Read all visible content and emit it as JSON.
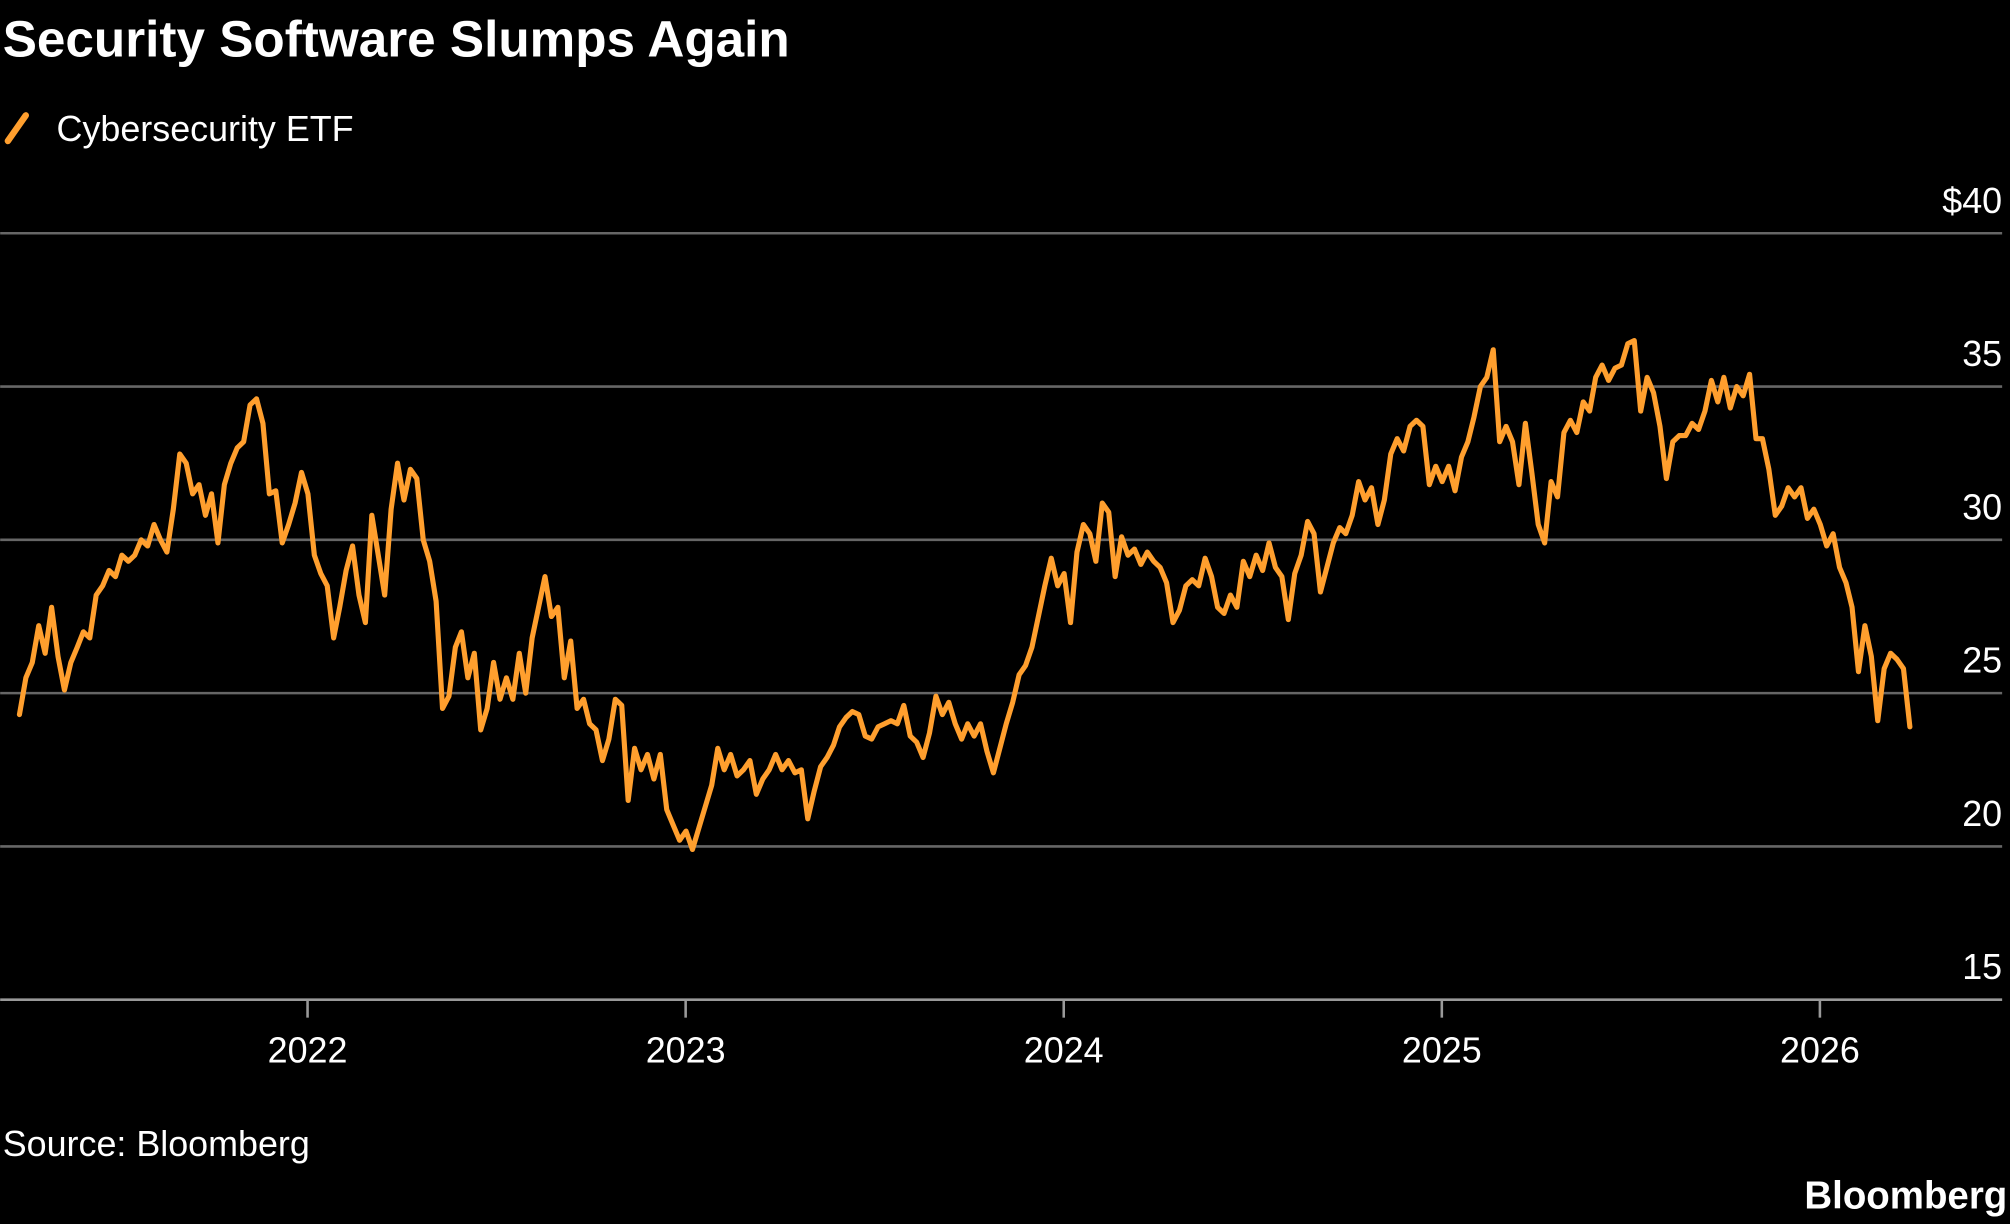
{
  "chart_data": {
    "type": "line",
    "title": "Security Software Slumps Again",
    "source": "Source: Bloomberg",
    "logo": "Bloomberg",
    "x": [
      2021.238,
      2021.255,
      2021.272,
      2021.289,
      2021.306,
      2021.323,
      2021.34,
      2021.357,
      2021.374,
      2021.391,
      2021.407,
      2021.424,
      2021.441,
      2021.458,
      2021.475,
      2021.492,
      2021.509,
      2021.526,
      2021.543,
      2021.56,
      2021.577,
      2021.594,
      2021.611,
      2021.628,
      2021.645,
      2021.662,
      2021.679,
      2021.696,
      2021.713,
      2021.73,
      2021.746,
      2021.763,
      2021.78,
      2021.797,
      2021.814,
      2021.831,
      2021.848,
      2021.865,
      2021.882,
      2021.899,
      2021.916,
      2021.933,
      2021.95,
      2021.967,
      2021.984,
      2022.001,
      2022.018,
      2022.035,
      2022.052,
      2022.069,
      2022.085,
      2022.102,
      2022.119,
      2022.136,
      2022.153,
      2022.17,
      2022.187,
      2022.204,
      2022.221,
      2022.238,
      2022.255,
      2022.272,
      2022.289,
      2022.306,
      2022.323,
      2022.34,
      2022.357,
      2022.374,
      2022.391,
      2022.407,
      2022.424,
      2022.441,
      2022.458,
      2022.475,
      2022.492,
      2022.509,
      2022.526,
      2022.543,
      2022.56,
      2022.577,
      2022.594,
      2022.611,
      2022.628,
      2022.645,
      2022.662,
      2022.679,
      2022.696,
      2022.713,
      2022.73,
      2022.746,
      2022.763,
      2022.78,
      2022.797,
      2022.814,
      2022.831,
      2022.848,
      2022.865,
      2022.882,
      2022.899,
      2022.916,
      2022.933,
      2022.95,
      2022.967,
      2022.984,
      2023.001,
      2023.018,
      2023.035,
      2023.052,
      2023.069,
      2023.085,
      2023.102,
      2023.119,
      2023.136,
      2023.153,
      2023.17,
      2023.187,
      2023.204,
      2023.221,
      2023.238,
      2023.255,
      2023.272,
      2023.289,
      2023.306,
      2023.323,
      2023.34,
      2023.357,
      2023.374,
      2023.391,
      2023.407,
      2023.424,
      2023.441,
      2023.458,
      2023.475,
      2023.492,
      2023.509,
      2023.526,
      2023.543,
      2023.56,
      2023.577,
      2023.594,
      2023.611,
      2023.628,
      2023.645,
      2023.662,
      2023.679,
      2023.696,
      2023.713,
      2023.73,
      2023.746,
      2023.763,
      2023.78,
      2023.797,
      2023.814,
      2023.831,
      2023.848,
      2023.865,
      2023.882,
      2023.899,
      2023.916,
      2023.933,
      2023.95,
      2023.967,
      2023.984,
      2024.001,
      2024.018,
      2024.035,
      2024.052,
      2024.069,
      2024.085,
      2024.102,
      2024.119,
      2024.136,
      2024.153,
      2024.17,
      2024.187,
      2024.204,
      2024.221,
      2024.238,
      2024.255,
      2024.272,
      2024.289,
      2024.306,
      2024.323,
      2024.34,
      2024.357,
      2024.374,
      2024.391,
      2024.407,
      2024.424,
      2024.441,
      2024.458,
      2024.475,
      2024.492,
      2024.509,
      2024.526,
      2024.543,
      2024.56,
      2024.577,
      2024.594,
      2024.611,
      2024.628,
      2024.645,
      2024.662,
      2024.679,
      2024.696,
      2024.713,
      2024.73,
      2024.746,
      2024.763,
      2024.78,
      2024.797,
      2024.814,
      2024.831,
      2024.848,
      2024.865,
      2024.882,
      2024.899,
      2024.916,
      2024.933,
      2024.95,
      2024.967,
      2024.984,
      2025.001,
      2025.018,
      2025.035,
      2025.052,
      2025.069,
      2025.085,
      2025.102,
      2025.119,
      2025.136,
      2025.153,
      2025.17,
      2025.187,
      2025.204,
      2025.221,
      2025.238,
      2025.255,
      2025.272,
      2025.289,
      2025.306,
      2025.323,
      2025.34,
      2025.357,
      2025.374,
      2025.391,
      2025.407,
      2025.424,
      2025.441,
      2025.458,
      2025.475,
      2025.492,
      2025.509,
      2025.526,
      2025.543,
      2025.56,
      2025.577,
      2025.594,
      2025.611,
      2025.628,
      2025.645,
      2025.662,
      2025.679,
      2025.696,
      2025.713,
      2025.73,
      2025.746,
      2025.763,
      2025.78,
      2025.797,
      2025.814,
      2025.831,
      2025.848,
      2025.865,
      2025.882,
      2025.899,
      2025.916,
      2025.933,
      2025.95,
      2025.967,
      2025.984,
      2026.001,
      2026.018,
      2026.035,
      2026.052,
      2026.069,
      2026.085,
      2026.102,
      2026.119,
      2026.136,
      2026.153,
      2026.17,
      2026.187,
      2026.204,
      2026.221,
      2026.238
    ],
    "series": [
      {
        "name": "Cybersecurity ETF",
        "color": "#ff9f2e",
        "values": [
          24.3,
          25.5,
          26,
          27.2,
          26.3,
          27.8,
          26.2,
          25.1,
          26,
          26.5,
          27,
          26.8,
          28.2,
          28.5,
          29,
          28.8,
          29.5,
          29.3,
          29.5,
          30,
          29.8,
          30.5,
          30,
          29.6,
          31,
          32.8,
          32.5,
          31.5,
          31.8,
          30.8,
          31.5,
          29.9,
          31.8,
          32.5,
          33,
          33.2,
          34.4,
          34.6,
          33.8,
          31.5,
          31.6,
          29.9,
          30.5,
          31.2,
          32.2,
          31.5,
          29.5,
          28.9,
          28.5,
          26.8,
          27.8,
          29,
          29.8,
          28.2,
          27.3,
          30.8,
          29.5,
          28.2,
          31,
          32.5,
          31.3,
          32.3,
          32,
          30,
          29.3,
          28,
          24.5,
          24.9,
          26.5,
          27,
          25.5,
          26.3,
          23.8,
          24.5,
          26,
          24.8,
          25.5,
          24.8,
          26.3,
          25,
          26.8,
          27.8,
          28.8,
          27.5,
          27.8,
          25.5,
          26.7,
          24.5,
          24.8,
          24,
          23.8,
          22.8,
          23.5,
          24.8,
          24.6,
          21.5,
          23.2,
          22.5,
          23,
          22.2,
          23,
          21.2,
          20.7,
          20.2,
          20.5,
          19.9,
          20.6,
          21.3,
          22,
          23.2,
          22.5,
          23,
          22.3,
          22.5,
          22.8,
          21.7,
          22.2,
          22.5,
          23,
          22.5,
          22.8,
          22.4,
          22.5,
          20.9,
          21.8,
          22.6,
          22.9,
          23.3,
          23.9,
          24.2,
          24.4,
          24.3,
          23.6,
          23.5,
          23.9,
          24,
          24.1,
          24,
          24.6,
          23.6,
          23.4,
          22.9,
          23.7,
          24.9,
          24.3,
          24.7,
          24,
          23.5,
          24,
          23.6,
          24,
          23.1,
          22.4,
          23.2,
          24,
          24.7,
          25.6,
          25.9,
          26.5,
          27.5,
          28.5,
          29.4,
          28.5,
          28.9,
          27.3,
          29.6,
          30.5,
          30.2,
          29.3,
          31.2,
          30.9,
          28.8,
          30.1,
          29.5,
          29.7,
          29.2,
          29.6,
          29.3,
          29.1,
          28.6,
          27.3,
          27.7,
          28.5,
          28.7,
          28.5,
          29.4,
          28.8,
          27.8,
          27.6,
          28.2,
          27.8,
          29.3,
          28.8,
          29.5,
          29,
          29.9,
          29.1,
          28.8,
          27.4,
          28.9,
          29.5,
          30.6,
          30.2,
          28.3,
          29.1,
          29.9,
          30.4,
          30.2,
          30.8,
          31.9,
          31.3,
          31.7,
          30.5,
          31.3,
          32.8,
          33.3,
          32.9,
          33.7,
          33.9,
          33.7,
          31.8,
          32.4,
          31.9,
          32.4,
          31.6,
          32.7,
          33.2,
          34,
          35,
          35.3,
          36.2,
          33.2,
          33.7,
          33.2,
          31.8,
          33.8,
          32.2,
          30.5,
          29.9,
          31.9,
          31.4,
          33.5,
          33.9,
          33.5,
          34.5,
          34.2,
          35.3,
          35.7,
          35.2,
          35.6,
          35.7,
          36.4,
          36.5,
          34.2,
          35.3,
          34.8,
          33.7,
          32,
          33.2,
          33.4,
          33.4,
          33.8,
          33.6,
          34.2,
          35.2,
          34.5,
          35.3,
          34.3,
          35,
          34.7,
          35.4,
          33.3,
          33.3,
          32.3,
          30.8,
          31.1,
          31.7,
          31.4,
          31.7,
          30.7,
          31,
          30.5,
          29.8,
          30.2,
          29.1,
          28.6,
          27.8,
          25.7,
          27.2,
          26.2,
          24.1,
          25.8,
          26.3,
          26.1,
          25.8,
          23.9
        ]
      }
    ],
    "xlim": [
      2021.187,
      2026.482
    ],
    "xticks": [
      2022,
      2023,
      2024,
      2025,
      2026
    ],
    "ylim": [
      15,
      40
    ],
    "yticks": [
      15,
      20,
      25,
      30,
      35,
      {
        "value": 40,
        "label": "$40"
      }
    ],
    "grid": true
  }
}
